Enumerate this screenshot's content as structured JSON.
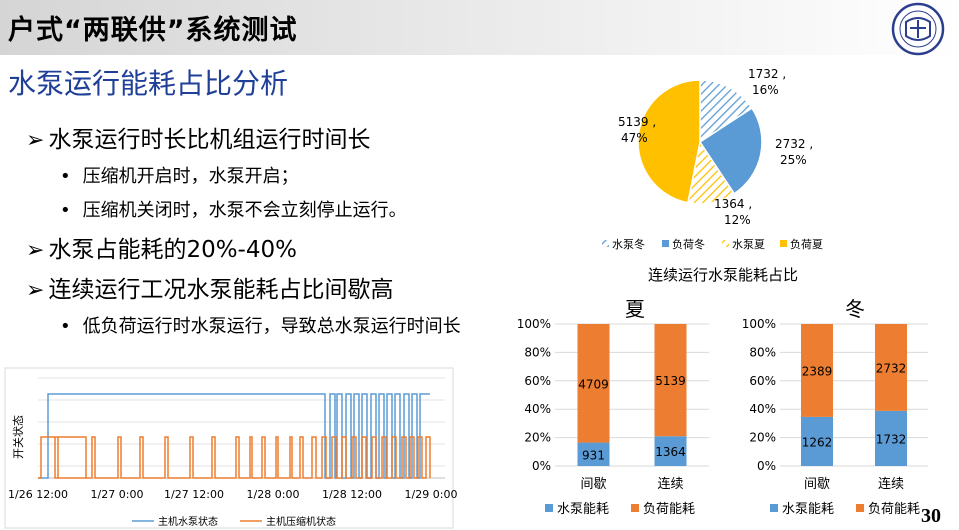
{
  "header": {
    "title": "户式“两联供”系统测试",
    "subtitle": "水泵运行能耗占比分析",
    "page_number": "30"
  },
  "bullets": [
    {
      "level": 1,
      "text": "水泵运行时长比机组运行时间长"
    },
    {
      "level": 2,
      "text": "压缩机开启时，水泵开启；"
    },
    {
      "level": 2,
      "text": "压缩机关闭时，水泵不会立刻停止运行。"
    },
    {
      "level": 1,
      "text": "水泵占能耗的20%-40%"
    },
    {
      "level": 1,
      "text": "连续运行工况水泵能耗占比间歇高"
    },
    {
      "level": 2,
      "text": "低负荷运行时水泵运行，导致总水泵运行时间长"
    }
  ],
  "colors": {
    "blue": "#5b9bd5",
    "orange": "#ed7d31",
    "yellow": "#ffc000",
    "pump_line": "#5b9bd5",
    "compressor_line": "#ed7d31"
  },
  "chart_data": [
    {
      "type": "line",
      "ylabel": "开关状态",
      "x_ticks": [
        "1/26 12:00",
        "1/27 0:00",
        "1/27 12:00",
        "1/28 0:00",
        "1/28 12:00",
        "1/29 0:00"
      ],
      "series": [
        {
          "name": "主机水泵状态",
          "color": "#5b9bd5"
        },
        {
          "name": "主机压缩机状态",
          "color": "#ed7d31"
        }
      ]
    },
    {
      "type": "pie",
      "title": "连续运行水泵能耗占比",
      "legend_position": "bottom",
      "slices": [
        {
          "name": "水泵冬",
          "value": 1732,
          "percent": "16%",
          "color": "#5b9bd5",
          "pattern": "hatch"
        },
        {
          "name": "负荷冬",
          "value": 2732,
          "percent": "25%",
          "color": "#5b9bd5",
          "pattern": "solid"
        },
        {
          "name": "水泵夏",
          "value": 1364,
          "percent": "12%",
          "color": "#ffc000",
          "pattern": "hatch"
        },
        {
          "name": "负荷夏",
          "value": 5139,
          "percent": "47%",
          "color": "#ffc000",
          "pattern": "solid"
        }
      ]
    },
    {
      "type": "bar",
      "title": "夏",
      "stacked": "percent",
      "categories": [
        "间歇",
        "连续"
      ],
      "y_ticks": [
        "0%",
        "20%",
        "40%",
        "60%",
        "80%",
        "100%"
      ],
      "series": [
        {
          "name": "水泵能耗",
          "values": [
            931,
            1364
          ],
          "color": "#5b9bd5"
        },
        {
          "name": "负荷能耗",
          "values": [
            4709,
            5139
          ],
          "color": "#ed7d31"
        }
      ]
    },
    {
      "type": "bar",
      "title": "冬",
      "stacked": "percent",
      "categories": [
        "间歇",
        "连续"
      ],
      "y_ticks": [
        "0%",
        "20%",
        "40%",
        "60%",
        "80%",
        "100%"
      ],
      "series": [
        {
          "name": "水泵能耗",
          "values": [
            1262,
            1732
          ],
          "color": "#5b9bd5"
        },
        {
          "name": "负荷能耗",
          "values": [
            2389,
            2732
          ],
          "color": "#ed7d31"
        }
      ]
    }
  ]
}
